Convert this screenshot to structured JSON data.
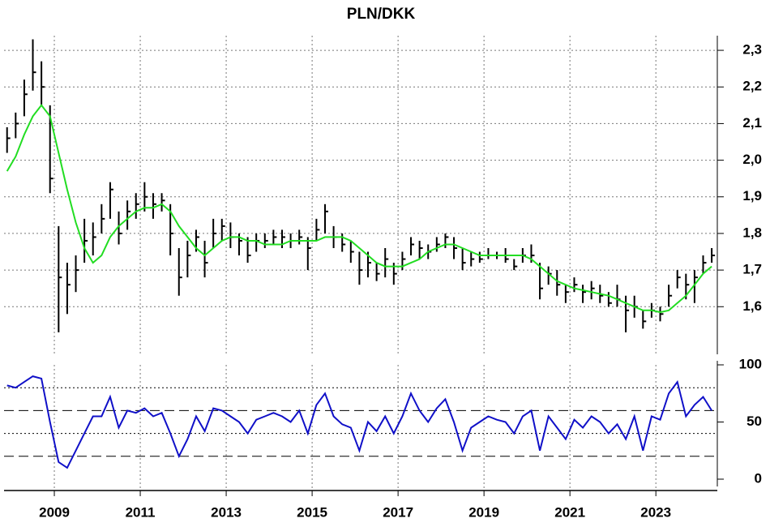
{
  "chart_data": [
    {
      "type": "ohlc",
      "title": "PLN/DKK",
      "x": [
        2007.9,
        2008.1,
        2008.3,
        2008.5,
        2008.7,
        2008.9,
        2009.1,
        2009.3,
        2009.5,
        2009.7,
        2009.9,
        2010.1,
        2010.3,
        2010.5,
        2010.7,
        2010.9,
        2011.1,
        2011.3,
        2011.5,
        2011.7,
        2011.9,
        2012.1,
        2012.3,
        2012.5,
        2012.7,
        2012.9,
        2013.1,
        2013.3,
        2013.5,
        2013.7,
        2013.9,
        2014.1,
        2014.3,
        2014.5,
        2014.7,
        2014.9,
        2015.1,
        2015.3,
        2015.5,
        2015.7,
        2015.9,
        2016.1,
        2016.3,
        2016.5,
        2016.7,
        2016.9,
        2017.1,
        2017.3,
        2017.5,
        2017.7,
        2017.9,
        2018.1,
        2018.3,
        2018.5,
        2018.7,
        2018.9,
        2019.1,
        2019.3,
        2019.5,
        2019.7,
        2019.9,
        2020.1,
        2020.3,
        2020.5,
        2020.7,
        2020.9,
        2021.1,
        2021.3,
        2021.5,
        2021.7,
        2021.9,
        2022.1,
        2022.3,
        2022.5,
        2022.7,
        2022.9,
        2023.1,
        2023.3,
        2023.5,
        2023.7,
        2023.9,
        2024.1,
        2024.3
      ],
      "high": [
        2.09,
        2.13,
        2.22,
        2.33,
        2.27,
        2.15,
        1.82,
        1.72,
        1.74,
        1.84,
        1.83,
        1.88,
        1.94,
        1.86,
        1.89,
        1.91,
        1.94,
        1.91,
        1.91,
        1.88,
        1.76,
        1.78,
        1.81,
        1.78,
        1.84,
        1.84,
        1.83,
        1.8,
        1.79,
        1.8,
        1.8,
        1.81,
        1.81,
        1.8,
        1.81,
        1.79,
        1.84,
        1.88,
        1.82,
        1.8,
        1.78,
        1.75,
        1.75,
        1.72,
        1.76,
        1.72,
        1.75,
        1.79,
        1.78,
        1.77,
        1.79,
        1.8,
        1.79,
        1.76,
        1.75,
        1.75,
        1.76,
        1.75,
        1.76,
        1.73,
        1.76,
        1.77,
        1.72,
        1.71,
        1.7,
        1.66,
        1.68,
        1.66,
        1.67,
        1.66,
        1.64,
        1.66,
        1.63,
        1.63,
        1.59,
        1.61,
        1.6,
        1.66,
        1.7,
        1.69,
        1.7,
        1.74,
        1.76
      ],
      "low": [
        2.02,
        2.06,
        2.12,
        2.19,
        2.15,
        1.91,
        1.53,
        1.58,
        1.64,
        1.72,
        1.74,
        1.8,
        1.84,
        1.77,
        1.81,
        1.84,
        1.86,
        1.84,
        1.86,
        1.74,
        1.63,
        1.68,
        1.75,
        1.68,
        1.76,
        1.78,
        1.76,
        1.74,
        1.72,
        1.75,
        1.76,
        1.77,
        1.76,
        1.76,
        1.77,
        1.7,
        1.78,
        1.8,
        1.76,
        1.75,
        1.72,
        1.66,
        1.68,
        1.67,
        1.68,
        1.66,
        1.7,
        1.74,
        1.73,
        1.73,
        1.75,
        1.76,
        1.73,
        1.7,
        1.71,
        1.72,
        1.73,
        1.73,
        1.72,
        1.7,
        1.72,
        1.72,
        1.62,
        1.66,
        1.63,
        1.61,
        1.64,
        1.61,
        1.62,
        1.61,
        1.6,
        1.6,
        1.53,
        1.57,
        1.54,
        1.57,
        1.56,
        1.6,
        1.65,
        1.62,
        1.61,
        1.69,
        1.72
      ],
      "close": [
        2.06,
        2.1,
        2.18,
        2.24,
        2.2,
        1.95,
        1.68,
        1.66,
        1.7,
        1.78,
        1.79,
        1.84,
        1.92,
        1.8,
        1.86,
        1.88,
        1.9,
        1.88,
        1.89,
        1.8,
        1.68,
        1.74,
        1.79,
        1.72,
        1.8,
        1.82,
        1.79,
        1.78,
        1.74,
        1.78,
        1.78,
        1.79,
        1.79,
        1.78,
        1.79,
        1.76,
        1.81,
        1.86,
        1.79,
        1.77,
        1.75,
        1.7,
        1.72,
        1.69,
        1.73,
        1.69,
        1.73,
        1.77,
        1.76,
        1.75,
        1.77,
        1.79,
        1.76,
        1.72,
        1.73,
        1.73,
        1.74,
        1.74,
        1.73,
        1.71,
        1.74,
        1.74,
        1.65,
        1.69,
        1.66,
        1.64,
        1.66,
        1.64,
        1.65,
        1.63,
        1.61,
        1.62,
        1.59,
        1.6,
        1.56,
        1.59,
        1.58,
        1.63,
        1.68,
        1.66,
        1.68,
        1.72,
        1.74
      ],
      "bar_color": "#000000",
      "moving_average": {
        "color": "#22dd22",
        "values": [
          1.97,
          2.01,
          2.07,
          2.12,
          2.15,
          2.12,
          2.02,
          1.92,
          1.83,
          1.76,
          1.72,
          1.74,
          1.79,
          1.82,
          1.84,
          1.86,
          1.87,
          1.87,
          1.88,
          1.86,
          1.82,
          1.79,
          1.76,
          1.74,
          1.76,
          1.78,
          1.79,
          1.79,
          1.78,
          1.78,
          1.77,
          1.77,
          1.77,
          1.78,
          1.78,
          1.78,
          1.78,
          1.79,
          1.79,
          1.79,
          1.78,
          1.76,
          1.74,
          1.72,
          1.71,
          1.71,
          1.71,
          1.72,
          1.73,
          1.75,
          1.76,
          1.77,
          1.77,
          1.76,
          1.75,
          1.74,
          1.74,
          1.74,
          1.74,
          1.74,
          1.74,
          1.73,
          1.71,
          1.69,
          1.67,
          1.66,
          1.65,
          1.645,
          1.64,
          1.635,
          1.63,
          1.62,
          1.61,
          1.6,
          1.59,
          1.59,
          1.585,
          1.59,
          1.61,
          1.63,
          1.66,
          1.69,
          1.71
        ]
      },
      "ylim": [
        1.47,
        2.34
      ],
      "yticks": [
        {
          "value": 1.6,
          "label": "1,6"
        },
        {
          "value": 1.7,
          "label": "1,7"
        },
        {
          "value": 1.8,
          "label": "1,8"
        },
        {
          "value": 1.9,
          "label": "1,9"
        },
        {
          "value": 2.0,
          "label": "2,0"
        },
        {
          "value": 2.1,
          "label": "2,1"
        },
        {
          "value": 2.2,
          "label": "2,2"
        },
        {
          "value": 2.3,
          "label": "2,3"
        }
      ],
      "grid": true
    },
    {
      "type": "line",
      "series": [
        {
          "color": "#1010c8",
          "values": [
            82,
            80,
            85,
            90,
            88,
            50,
            15,
            10,
            25,
            40,
            55,
            55,
            72,
            45,
            60,
            58,
            62,
            55,
            58,
            40,
            20,
            35,
            55,
            42,
            62,
            60,
            55,
            50,
            40,
            52,
            55,
            58,
            55,
            50,
            60,
            40,
            65,
            75,
            55,
            48,
            45,
            25,
            50,
            42,
            55,
            40,
            55,
            75,
            60,
            50,
            62,
            70,
            50,
            25,
            45,
            50,
            55,
            52,
            50,
            40,
            55,
            60,
            25,
            55,
            45,
            35,
            52,
            45,
            55,
            50,
            40,
            48,
            35,
            55,
            25,
            55,
            52,
            75,
            85,
            55,
            65,
            72,
            60
          ]
        }
      ],
      "xlim": [
        2007.83,
        2024.43
      ],
      "xticks": [
        2009,
        2011,
        2013,
        2015,
        2017,
        2019,
        2021,
        2023
      ],
      "ylim": [
        0,
        100
      ],
      "yticks": [
        0,
        50,
        100
      ],
      "dotted_levels": [
        80,
        40
      ],
      "dashed_levels": [
        60,
        20
      ],
      "grid": true
    }
  ]
}
